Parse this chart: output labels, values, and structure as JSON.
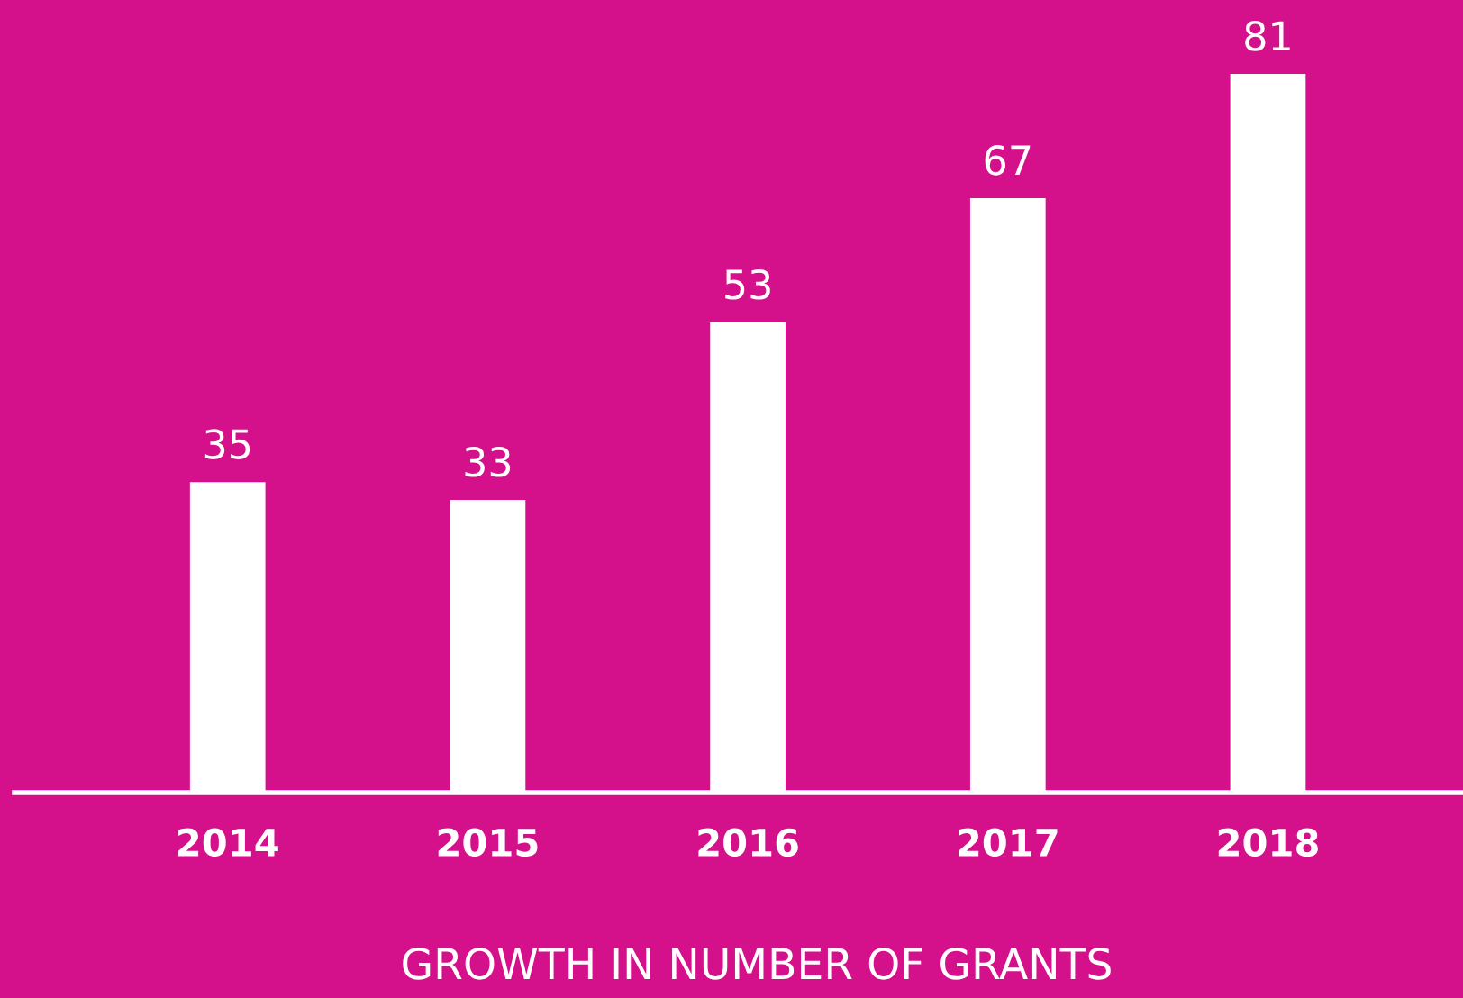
{
  "chart_data": {
    "type": "bar",
    "title": "GROWTH IN NUMBER OF GRANTS",
    "categories": [
      "2014",
      "2015",
      "2016",
      "2017",
      "2018"
    ],
    "values": [
      35,
      33,
      53,
      67,
      81
    ],
    "color": "#ffffff",
    "data_labels": true,
    "grid": false,
    "legend": false
  }
}
